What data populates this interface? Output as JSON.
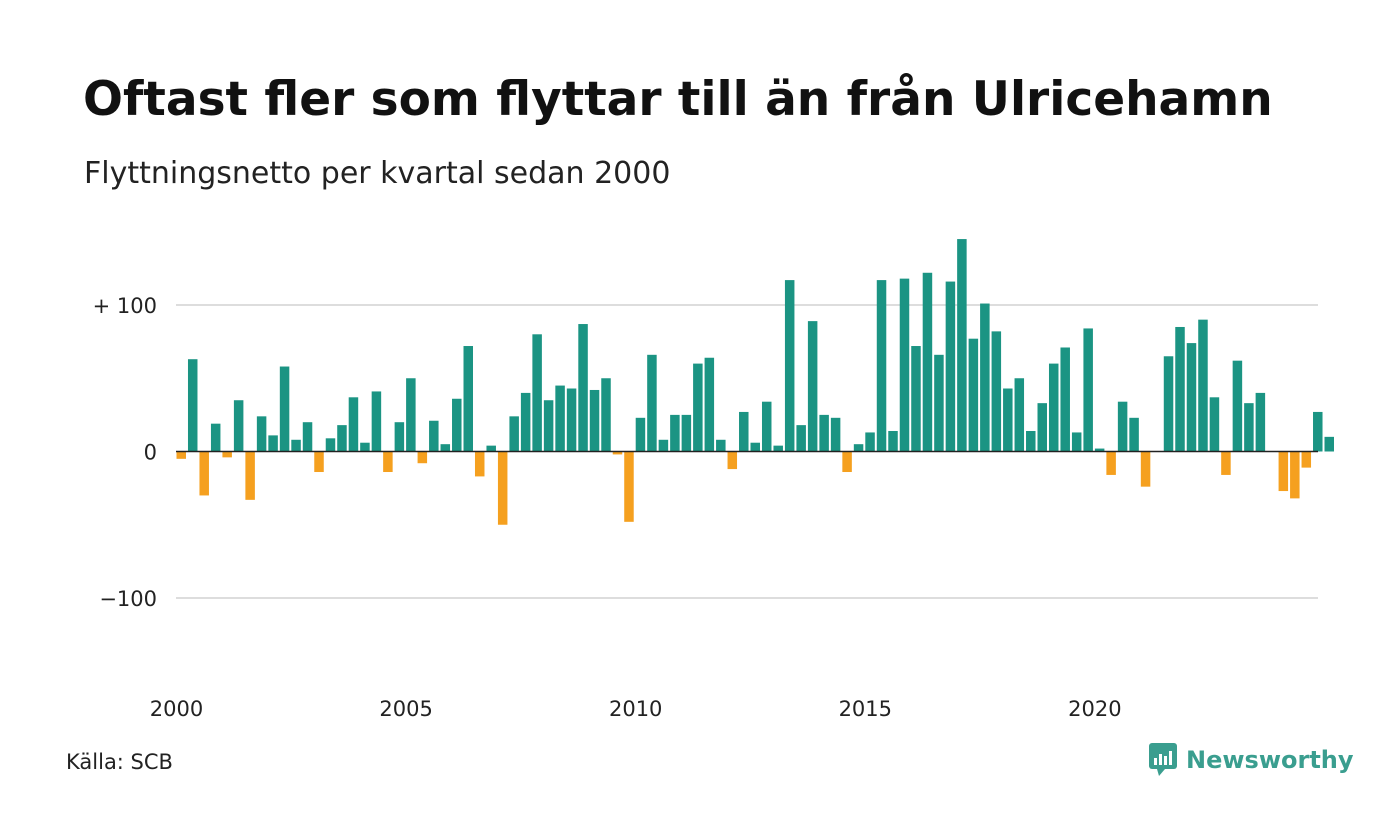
{
  "title": "Oftast fler som flyttar till än från Ulricehamn",
  "subtitle": "Flyttningsnetto per kvartal sedan 2000",
  "source": "Källa: SCB",
  "brand": "Newsworthy",
  "colors": {
    "positive": "#1b9483",
    "negative": "#f5a01f",
    "grid": "#dddddd",
    "baseline": "#222222",
    "brand": "#3a9e8f"
  },
  "chart_data": {
    "type": "bar",
    "title": "Oftast fler som flyttar till än från Ulricehamn",
    "subtitle": "Flyttningsnetto per kvartal sedan 2000",
    "xlabel": "",
    "ylabel": "",
    "ylim": [
      -160,
      160
    ],
    "grid": true,
    "y_ticks": [
      {
        "value": 100,
        "label": "+ 100"
      },
      {
        "value": 0,
        "label": "0"
      },
      {
        "value": -100,
        "label": "−100"
      }
    ],
    "x_ticks": [
      {
        "value": 2000,
        "label": "2000"
      },
      {
        "value": 2005,
        "label": "2005"
      },
      {
        "value": 2010,
        "label": "2010"
      },
      {
        "value": 2015,
        "label": "2015"
      },
      {
        "value": 2020,
        "label": "2020"
      }
    ],
    "start_year": 2000,
    "values": [
      -5,
      63,
      -30,
      19,
      -4,
      35,
      -33,
      24,
      11,
      58,
      8,
      20,
      -14,
      9,
      18,
      37,
      6,
      41,
      -14,
      20,
      50,
      -8,
      21,
      5,
      36,
      72,
      -17,
      4,
      -50,
      24,
      40,
      80,
      35,
      45,
      43,
      87,
      42,
      50,
      -2,
      -48,
      23,
      66,
      8,
      25,
      25,
      60,
      64,
      8,
      -12,
      27,
      6,
      34,
      4,
      117,
      18,
      89,
      25,
      23,
      -14,
      5,
      13,
      117,
      14,
      118,
      72,
      122,
      66,
      116,
      145,
      77,
      101,
      82,
      43,
      50,
      14,
      33,
      60,
      71,
      13,
      84,
      2,
      -16,
      34,
      23,
      -24,
      0,
      65,
      85,
      74,
      90,
      37,
      -16,
      62,
      33,
      40,
      0,
      -27,
      -32,
      -11,
      27,
      10
    ]
  }
}
